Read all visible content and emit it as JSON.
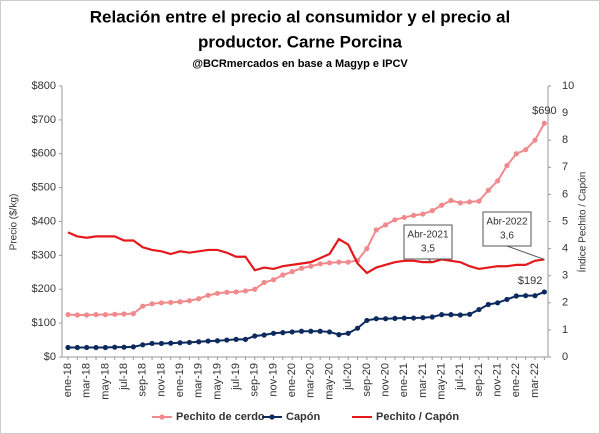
{
  "chart_data": {
    "type": "line",
    "title": [
      "Relación entre el precio al consumidor y el precio al",
      "productor. Carne Porcina"
    ],
    "subtitle": "@BCRmercados  en base a Magyp e IPCV",
    "y_label": "Precio ($/kg)",
    "y2_label": "Índice Pechito / Capón",
    "categories": [
      "ene-18",
      null,
      "mar-18",
      null,
      "may-18",
      null,
      "jul-18",
      null,
      "sep-18",
      null,
      "nov-18",
      null,
      "ene-19",
      null,
      "mar-19",
      null,
      "may-19",
      null,
      "jul-19",
      null,
      "sep-19",
      null,
      "nov-19",
      null,
      "ene-20",
      null,
      "mar-20",
      null,
      "may-20",
      null,
      "jul-20",
      null,
      "sep-20",
      null,
      "nov-20",
      null,
      "ene-21",
      null,
      "mar-21",
      null,
      "may-21",
      null,
      "jul-21",
      null,
      "sep-21",
      null,
      "nov-21",
      null,
      "ene-22",
      null,
      "mar-22",
      null
    ],
    "series": [
      {
        "name": "Pechito de cerdo",
        "color": "#f08a8c",
        "marker": true,
        "values": [
          125,
          124,
          124,
          125,
          125,
          126,
          127,
          128,
          150,
          157,
          160,
          161,
          163,
          166,
          172,
          182,
          188,
          191,
          192,
          195,
          200,
          220,
          228,
          242,
          252,
          262,
          268,
          275,
          278,
          280,
          280,
          285,
          320,
          375,
          390,
          405,
          412,
          418,
          422,
          432,
          448,
          462,
          455,
          458,
          460,
          492,
          520,
          565,
          600,
          612,
          640,
          690
        ],
        "value_labels": [
          null,
          null,
          null,
          null,
          null,
          null,
          null,
          null,
          null,
          null,
          null,
          null,
          null,
          null,
          null,
          null,
          null,
          null,
          null,
          null,
          null,
          null,
          null,
          null,
          null,
          null,
          null,
          null,
          null,
          null,
          null,
          null,
          null,
          null,
          null,
          null,
          null,
          null,
          null,
          null,
          null,
          null,
          null,
          null,
          null,
          null,
          null,
          null,
          null,
          null,
          null,
          "$690"
        ]
      },
      {
        "name": "Capón",
        "color": "#0d2a5e",
        "marker": true,
        "values": [
          28,
          28,
          28,
          28,
          28,
          29,
          29,
          30,
          36,
          40,
          40,
          41,
          42,
          43,
          45,
          47,
          48,
          50,
          52,
          52,
          62,
          65,
          70,
          72,
          74,
          76,
          76,
          76,
          74,
          66,
          70,
          85,
          108,
          113,
          113,
          114,
          115,
          115,
          116,
          118,
          125,
          125,
          124,
          126,
          140,
          155,
          160,
          170,
          180,
          181,
          181,
          192
        ],
        "value_labels": [
          null,
          null,
          null,
          null,
          null,
          null,
          null,
          null,
          null,
          null,
          null,
          null,
          null,
          null,
          null,
          null,
          null,
          null,
          null,
          null,
          null,
          null,
          null,
          null,
          null,
          null,
          null,
          null,
          null,
          null,
          null,
          null,
          null,
          null,
          null,
          null,
          null,
          null,
          null,
          null,
          null,
          null,
          null,
          null,
          null,
          null,
          null,
          null,
          null,
          null,
          null,
          "$192"
        ]
      },
      {
        "name": "Pechito / Capón",
        "color": "#e3191c",
        "marker": false,
        "axis": "y2",
        "values": [
          4.6,
          4.45,
          4.4,
          4.45,
          4.45,
          4.45,
          4.3,
          4.3,
          4.05,
          3.95,
          3.9,
          3.8,
          3.9,
          3.85,
          3.9,
          3.95,
          3.95,
          3.85,
          3.7,
          3.7,
          3.2,
          3.3,
          3.25,
          3.35,
          3.4,
          3.45,
          3.5,
          3.65,
          3.8,
          4.35,
          4.15,
          3.45,
          3.1,
          3.3,
          3.4,
          3.5,
          3.55,
          3.55,
          3.5,
          3.5,
          3.6,
          3.55,
          3.5,
          3.35,
          3.25,
          3.3,
          3.35,
          3.35,
          3.4,
          3.4,
          3.55,
          3.6
        ],
        "value_labels": [
          null,
          null,
          null,
          null,
          null,
          null,
          null,
          null,
          null,
          null,
          null,
          null,
          null,
          null,
          null,
          null,
          null,
          null,
          null,
          null,
          null,
          null,
          null,
          null,
          null,
          null,
          null,
          null,
          null,
          null,
          null,
          null,
          null,
          null,
          null,
          null,
          null,
          null,
          null,
          "3,5",
          null,
          null,
          null,
          null,
          null,
          null,
          null,
          null,
          null,
          null,
          null,
          "3,6"
        ]
      }
    ],
    "annotations": [
      {
        "label": "Abr-2021"
      },
      {
        "label": "Abr-2022"
      }
    ],
    "ylim": [
      0,
      800
    ],
    "yticks": [
      {
        "value": 0,
        "label": "$0"
      },
      {
        "value": 100,
        "label": "$100"
      },
      {
        "value": 200,
        "label": "$200"
      },
      {
        "value": 300,
        "label": "$300"
      },
      {
        "value": 400,
        "label": "$400"
      },
      {
        "value": 500,
        "label": "$500"
      },
      {
        "value": 600,
        "label": "$600"
      },
      {
        "value": 700,
        "label": "$700"
      },
      {
        "value": 800,
        "label": "$800"
      }
    ],
    "y2lim": [
      0,
      10
    ],
    "y2ticks": [
      0,
      1,
      2,
      3,
      4,
      5,
      6,
      7,
      8,
      9,
      10
    ],
    "grid": false,
    "legend": "bottom"
  }
}
